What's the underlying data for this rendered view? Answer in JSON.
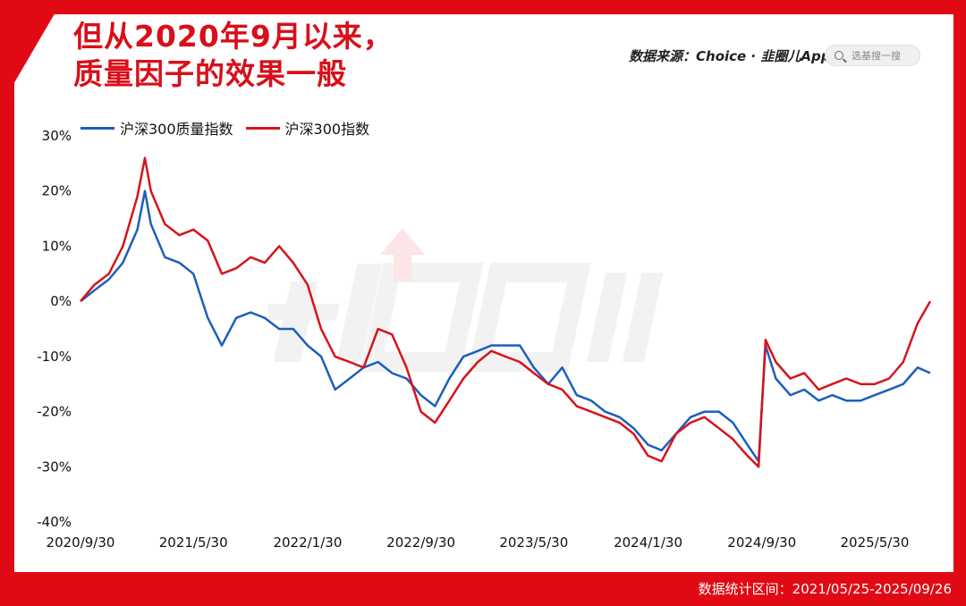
{
  "title_lines": [
    "但从2020年9月以来，",
    "质量因子的效果一般"
  ],
  "source_label": "数据来源：Choice · 韭圈儿App",
  "search_placeholder": "选基搜一搜",
  "footer": "数据统计区间：2021/05/25-2025/09/26",
  "colors": {
    "frame": "#e10a14",
    "quality": "#1b5fbd",
    "index": "#d7131b"
  },
  "chart_data": {
    "type": "line",
    "title": "",
    "xlabel": "",
    "ylabel": "",
    "ylim": [
      -40,
      30
    ],
    "yticks": [
      30,
      20,
      10,
      0,
      -10,
      -20,
      -30,
      -40
    ],
    "ytick_labels": [
      "30%",
      "20%",
      "10%",
      "0%",
      "-10%",
      "-20%",
      "-30%",
      "-40%"
    ],
    "xticks": [
      "2020/9/30",
      "2021/5/30",
      "2022/1/30",
      "2022/9/30",
      "2023/5/30",
      "2024/1/30",
      "2024/9/30",
      "2025/5/30"
    ],
    "x": [
      "2020/9/30",
      "2020/10/30",
      "2020/11/30",
      "2020/12/30",
      "2021/1/30",
      "2021/2/15",
      "2021/2/28",
      "2021/3/30",
      "2021/4/30",
      "2021/5/30",
      "2021/6/30",
      "2021/7/30",
      "2021/8/30",
      "2021/9/30",
      "2021/10/30",
      "2021/11/30",
      "2021/12/30",
      "2022/1/30",
      "2022/2/28",
      "2022/3/30",
      "2022/4/30",
      "2022/5/30",
      "2022/6/30",
      "2022/7/30",
      "2022/8/30",
      "2022/9/30",
      "2022/10/30",
      "2022/11/30",
      "2022/12/30",
      "2023/1/30",
      "2023/2/28",
      "2023/3/30",
      "2023/4/30",
      "2023/5/30",
      "2023/6/30",
      "2023/7/30",
      "2023/8/30",
      "2023/9/30",
      "2023/10/30",
      "2023/11/30",
      "2023/12/30",
      "2024/1/30",
      "2024/2/28",
      "2024/3/30",
      "2024/4/30",
      "2024/5/30",
      "2024/6/30",
      "2024/7/30",
      "2024/8/30",
      "2024/9/23",
      "2024/10/8",
      "2024/10/30",
      "2024/11/30",
      "2024/12/30",
      "2025/1/30",
      "2025/2/28",
      "2025/3/30",
      "2025/4/30",
      "2025/5/30",
      "2025/6/30",
      "2025/7/30",
      "2025/8/30",
      "2025/9/26"
    ],
    "series": [
      {
        "name": "沪深300质量指数",
        "values": [
          0,
          2,
          4,
          7,
          13,
          20,
          14,
          8,
          7,
          5,
          -3,
          -8,
          -3,
          -2,
          -3,
          -5,
          -5,
          -8,
          -10,
          -16,
          -14,
          -12,
          -11,
          -13,
          -14,
          -17,
          -19,
          -14,
          -10,
          -9,
          -8,
          -8,
          -8,
          -12,
          -15,
          -12,
          -17,
          -18,
          -20,
          -21,
          -23,
          -26,
          -27,
          -24,
          -21,
          -20,
          -20,
          -22,
          -26,
          -29,
          -8,
          -14,
          -17,
          -16,
          -18,
          -17,
          -18,
          -18,
          -17,
          -16,
          -15,
          -12,
          -13
        ]
      },
      {
        "name": "沪深300指数",
        "values": [
          0,
          3,
          5,
          10,
          19,
          26,
          20,
          14,
          12,
          13,
          11,
          5,
          6,
          8,
          7,
          10,
          7,
          3,
          -5,
          -10,
          -11,
          -12,
          -5,
          -6,
          -12,
          -20,
          -22,
          -18,
          -14,
          -11,
          -9,
          -10,
          -11,
          -13,
          -15,
          -16,
          -19,
          -20,
          -21,
          -22,
          -24,
          -28,
          -29,
          -24,
          -22,
          -21,
          -23,
          -25,
          -28,
          -30,
          -7,
          -11,
          -14,
          -13,
          -16,
          -15,
          -14,
          -15,
          -15,
          -14,
          -11,
          -4,
          0
        ]
      }
    ]
  }
}
